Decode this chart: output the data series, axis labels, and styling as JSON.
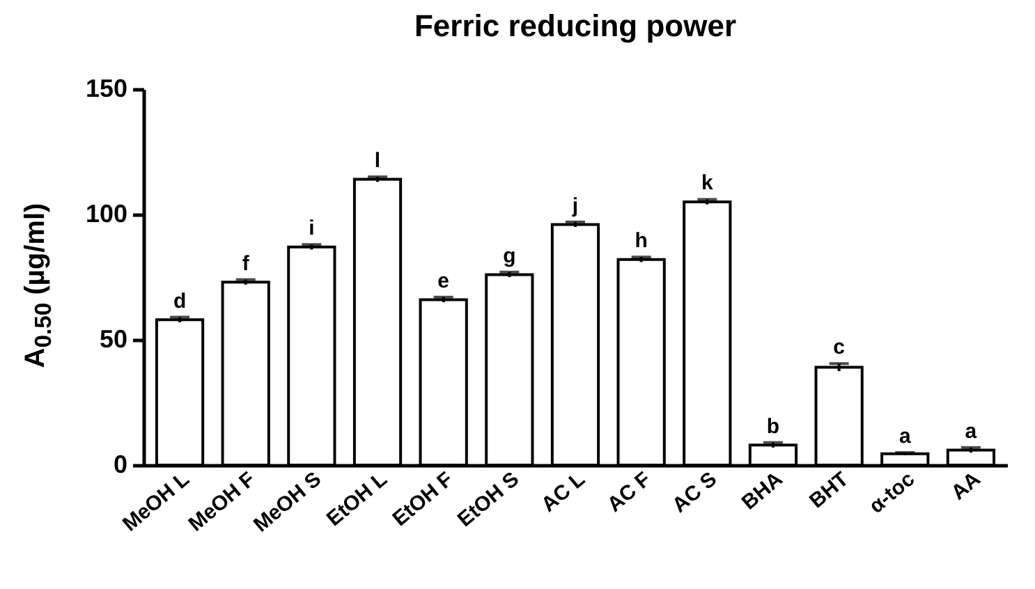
{
  "chart_data": {
    "type": "bar",
    "title": "Ferric reducing power",
    "ylabel": "A$_{0.50}$ (µg/ml)",
    "categories": [
      "MeOH L",
      "MeOH F",
      "MeOH S",
      "EtOH L",
      "EtOH F",
      "EtOH S",
      "AC L",
      "AC F",
      "AC S",
      "BHA",
      "BHT",
      "α-toc",
      "AA"
    ],
    "values": [
      58,
      73,
      87,
      114,
      66,
      76,
      96,
      82,
      105,
      8,
      39,
      4.5,
      6
    ],
    "errors": [
      1,
      1,
      1,
      1,
      1,
      1,
      1,
      1,
      1,
      1,
      1.5,
      0.5,
      1
    ],
    "color": "#ffffff",
    "ylim": [
      0,
      150
    ],
    "yticks": [
      0,
      50,
      100,
      150
    ],
    "grid": false,
    "annotations": [
      {
        "text": "d",
        "x": "MeOH L",
        "y": 59
      },
      {
        "text": "f",
        "x": "MeOH F",
        "y": 74
      },
      {
        "text": "i",
        "x": "MeOH S",
        "y": 88
      },
      {
        "text": "l",
        "x": "EtOH L",
        "y": 115
      },
      {
        "text": "e",
        "x": "EtOH F",
        "y": 67
      },
      {
        "text": "g",
        "x": "EtOH S",
        "y": 77
      },
      {
        "text": "j",
        "x": "AC L",
        "y": 97
      },
      {
        "text": "h",
        "x": "AC F",
        "y": 83
      },
      {
        "text": "k",
        "x": "AC S",
        "y": 106
      },
      {
        "text": "b",
        "x": "BHA",
        "y": 9
      },
      {
        "text": "c",
        "x": "BHT",
        "y": 40.5
      },
      {
        "text": "a",
        "x": "α-toc",
        "y": 5
      },
      {
        "text": "a",
        "x": "AA",
        "y": 7
      }
    ]
  }
}
